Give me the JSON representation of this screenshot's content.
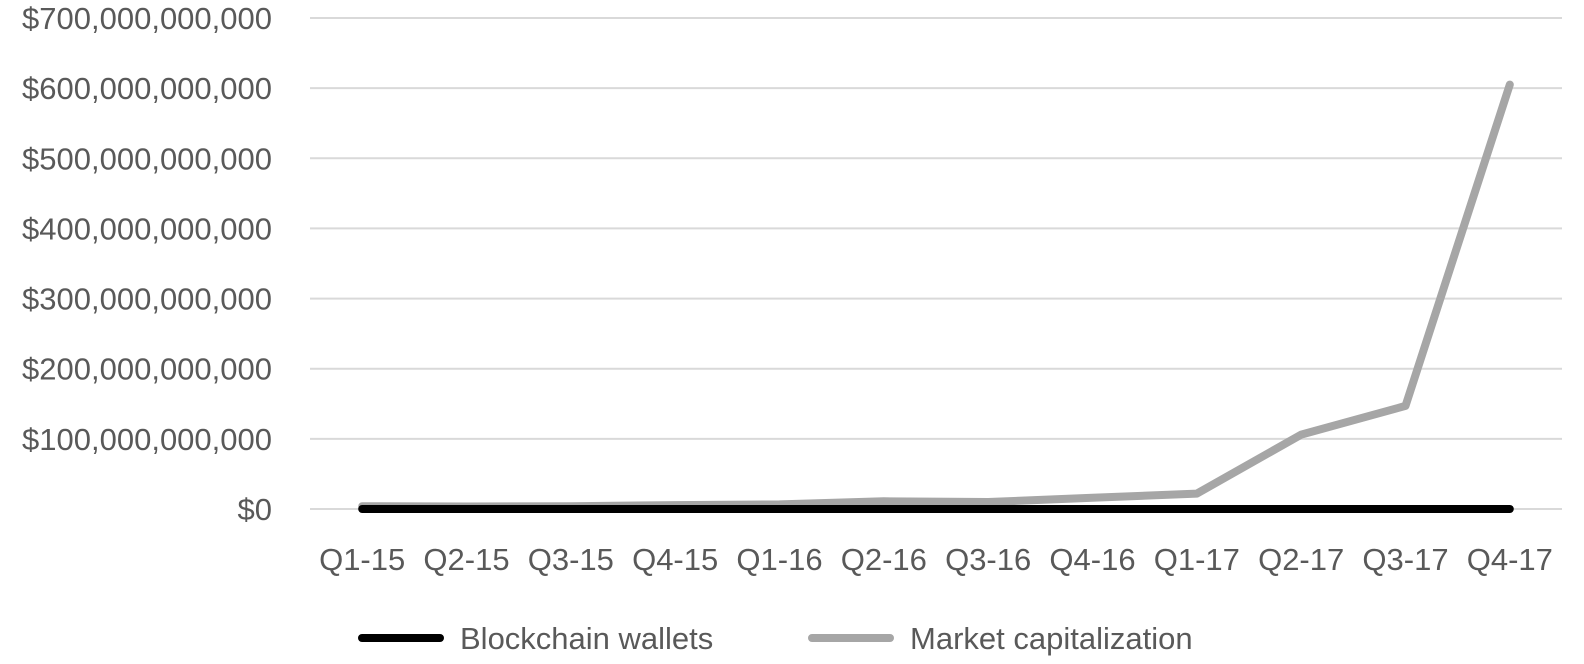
{
  "chart_data": {
    "type": "line",
    "title": "",
    "xlabel": "",
    "ylabel": "",
    "categories": [
      "Q1-15",
      "Q2-15",
      "Q3-15",
      "Q4-15",
      "Q1-16",
      "Q2-16",
      "Q3-16",
      "Q4-16",
      "Q1-17",
      "Q2-17",
      "Q3-17",
      "Q4-17"
    ],
    "ylim": [
      0,
      700000000000
    ],
    "yticks": [
      0,
      100000000000,
      200000000000,
      300000000000,
      400000000000,
      500000000000,
      600000000000,
      700000000000
    ],
    "ytick_labels": [
      "$0",
      "$100,000,000,000",
      "$200,000,000,000",
      "$300,000,000,000",
      "$400,000,000,000",
      "$500,000,000,000",
      "$600,000,000,000",
      "$700,000,000,000"
    ],
    "grid": true,
    "legend_position": "bottom",
    "series": [
      {
        "name": "Blockchain wallets",
        "color": "#000000",
        "values": [
          3000000,
          3500000,
          5000000,
          7000000,
          9000000,
          10000000,
          11000000,
          12000000,
          13000000,
          16000000,
          20000000,
          25000000
        ]
      },
      {
        "name": "Market capitalization",
        "color": "#a6a6a6",
        "values": [
          4000000000,
          3500000000,
          4000000000,
          5500000000,
          6500000000,
          11000000000,
          10000000000,
          16000000000,
          22000000000,
          106000000000,
          147000000000,
          605000000000
        ]
      }
    ]
  }
}
